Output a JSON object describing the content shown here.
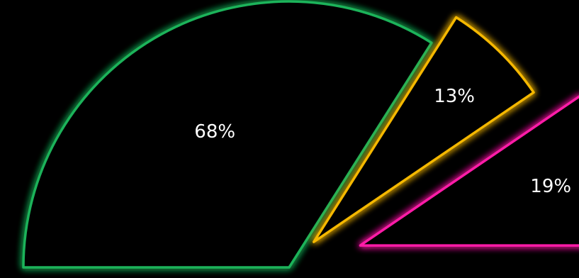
{
  "chart_data": {
    "type": "pie",
    "variant": "half-pie-exploded",
    "slices": [
      {
        "label": "68%",
        "value": 68,
        "color": "#1bb35a"
      },
      {
        "label": "13%",
        "value": 13,
        "color": "#f5b800"
      },
      {
        "label": "19%",
        "value": 19,
        "color": "#ff1aa8"
      }
    ],
    "background": "#000000",
    "legend": "none",
    "grid": false
  }
}
